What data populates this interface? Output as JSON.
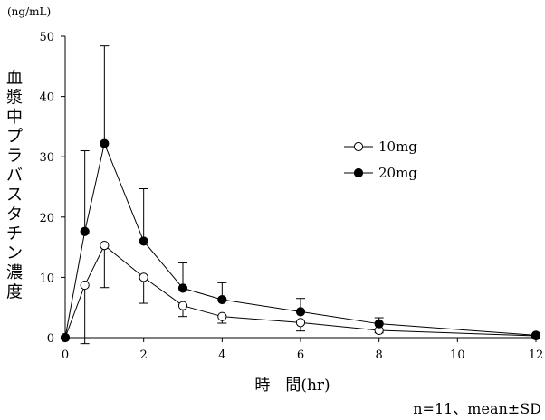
{
  "chart_data": {
    "type": "line",
    "ylabel": "血漿中プラバスタチン濃度",
    "yunit": "(ng/mL)",
    "xlabel": "時　間(hr)",
    "xlim": [
      0,
      12
    ],
    "ylim": [
      0,
      50
    ],
    "xticks": [
      0,
      2,
      4,
      6,
      8,
      10,
      12
    ],
    "yticks": [
      0,
      10,
      20,
      30,
      40,
      50
    ],
    "x": [
      0,
      0.5,
      1,
      2,
      3,
      4,
      6,
      8,
      12
    ],
    "series": [
      {
        "name": "10mg",
        "marker": "open-circle",
        "values": [
          0,
          8.7,
          15.3,
          10.0,
          5.3,
          3.5,
          2.5,
          1.2,
          0.3
        ],
        "error_upper": [
          0,
          0,
          0,
          0,
          0,
          0,
          0,
          0,
          0
        ],
        "error_lower": [
          0,
          9.7,
          7.0,
          4.3,
          1.8,
          1.1,
          1.4,
          0.4,
          0
        ]
      },
      {
        "name": "20mg",
        "marker": "filled-circle",
        "values": [
          0,
          17.6,
          32.2,
          16.0,
          8.2,
          6.3,
          4.3,
          2.3,
          0.4
        ],
        "error_upper": [
          0,
          13.4,
          16.2,
          8.7,
          4.2,
          2.8,
          2.2,
          1.0,
          0
        ],
        "error_lower": [
          0,
          0,
          0,
          0,
          0,
          0,
          0,
          0,
          0
        ]
      }
    ],
    "legend_position": "right-middle",
    "grid": false
  },
  "footnote": "n=11、mean±SD",
  "colors": {
    "ink": "#000000",
    "background": "#ffffff"
  }
}
